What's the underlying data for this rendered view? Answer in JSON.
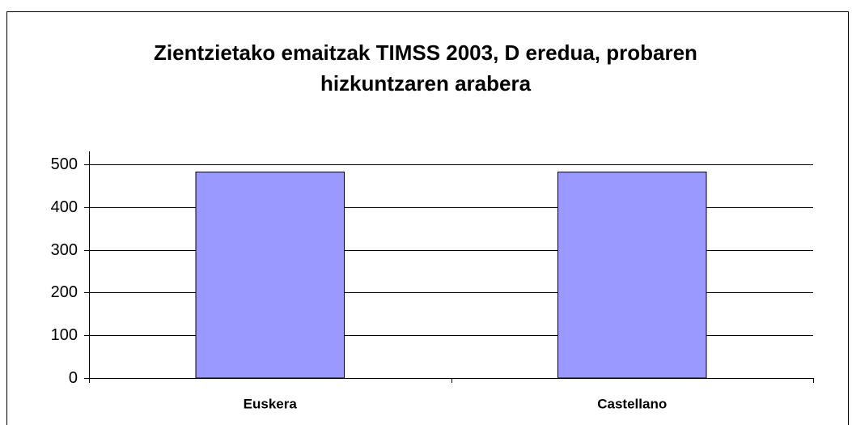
{
  "chart_data": {
    "type": "bar",
    "title": "Zientzietako emaitzak TIMSS 2003, D eredua, probaren hizkuntzaren arabera",
    "categories": [
      "Euskera",
      "Castellano"
    ],
    "values": [
      482,
      482
    ],
    "color": "#9999ff",
    "ylim": [
      0,
      500
    ],
    "yticks": [
      0,
      100,
      200,
      300,
      400,
      500
    ],
    "grid": true
  }
}
